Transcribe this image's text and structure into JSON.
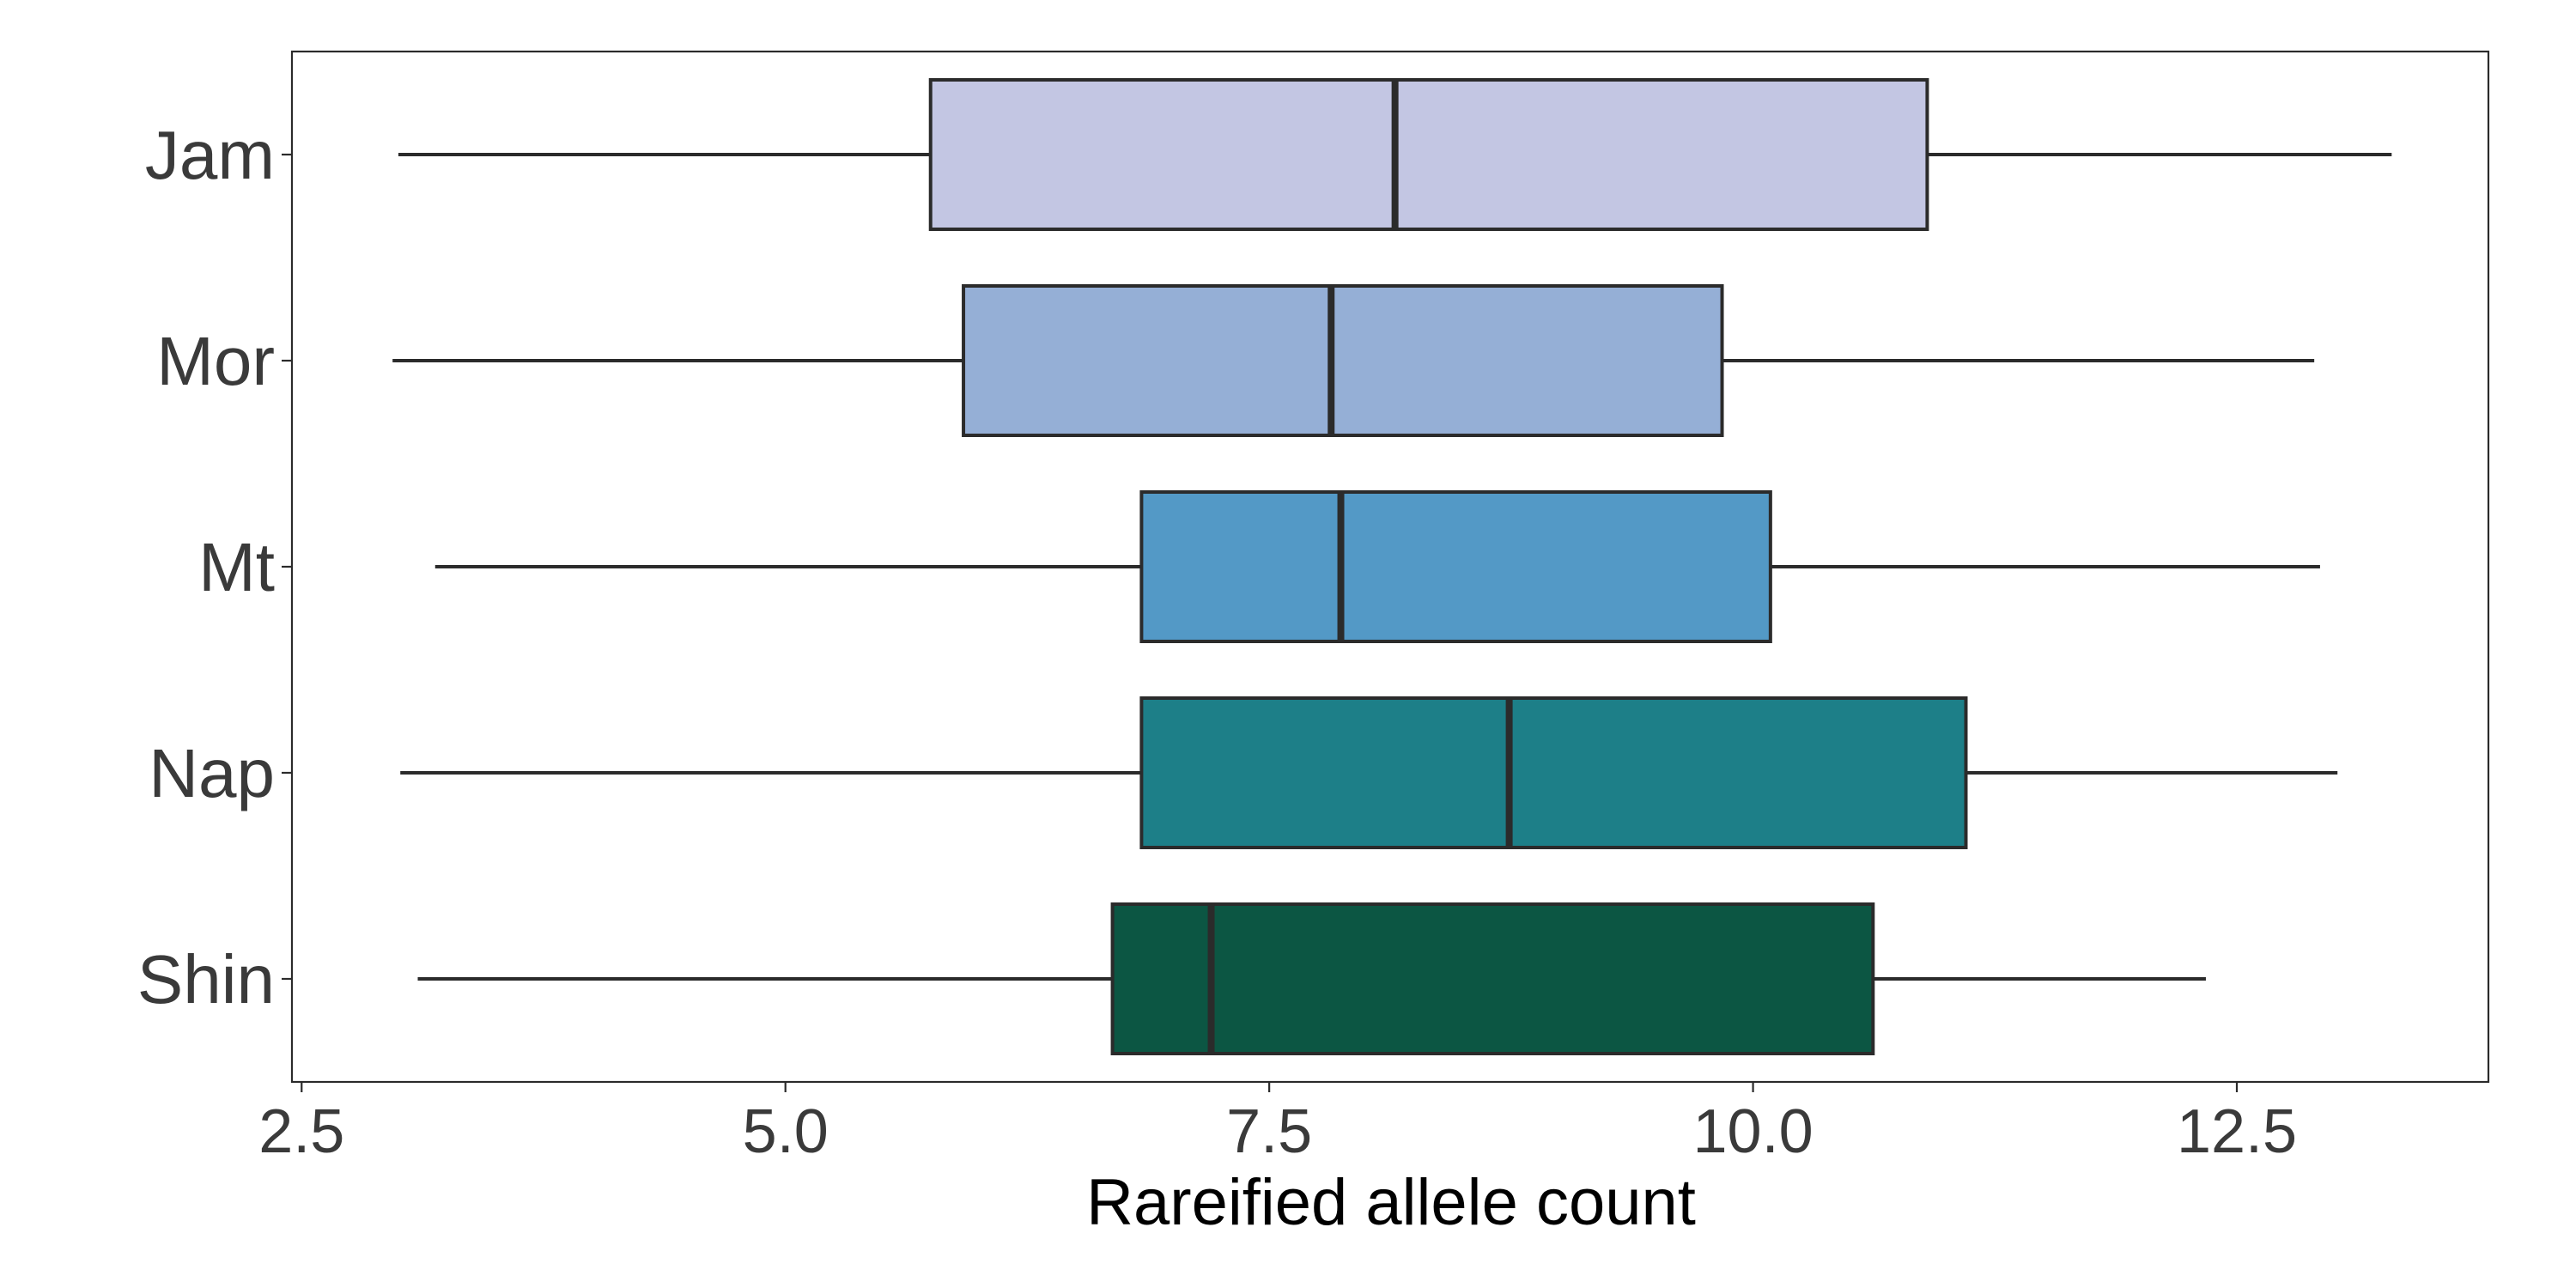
{
  "chart_data": {
    "type": "boxplot",
    "orientation": "horizontal",
    "title": "",
    "xlabel": "Rareified allele count",
    "ylabel": "",
    "xlim": [
      2.45,
      13.8
    ],
    "xticks": [
      2.5,
      5.0,
      7.5,
      10.0,
      12.5
    ],
    "xtick_labels": [
      "2.5",
      "5.0",
      "7.5",
      "10.0",
      "12.5"
    ],
    "grid": false,
    "legend": "none",
    "categories": [
      "Jam",
      "Mor",
      "Mt",
      "Nap",
      "Shin"
    ],
    "boxes": [
      {
        "category": "Jam",
        "min": 3.0,
        "q1": 5.75,
        "median": 8.15,
        "q3": 10.9,
        "max": 13.3,
        "color": "#c3c6e3"
      },
      {
        "category": "Mor",
        "min": 2.97,
        "q1": 5.92,
        "median": 7.82,
        "q3": 9.84,
        "max": 12.9,
        "color": "#95afd6"
      },
      {
        "category": "Mt",
        "min": 3.19,
        "q1": 6.84,
        "median": 7.87,
        "q3": 10.09,
        "max": 12.93,
        "color": "#5399c6"
      },
      {
        "category": "Nap",
        "min": 3.01,
        "q1": 6.84,
        "median": 8.74,
        "q3": 11.1,
        "max": 13.02,
        "color": "#1d7f88"
      },
      {
        "category": "Shin",
        "min": 3.1,
        "q1": 6.69,
        "median": 7.2,
        "q3": 10.62,
        "max": 12.34,
        "color": "#0c5643"
      }
    ]
  }
}
